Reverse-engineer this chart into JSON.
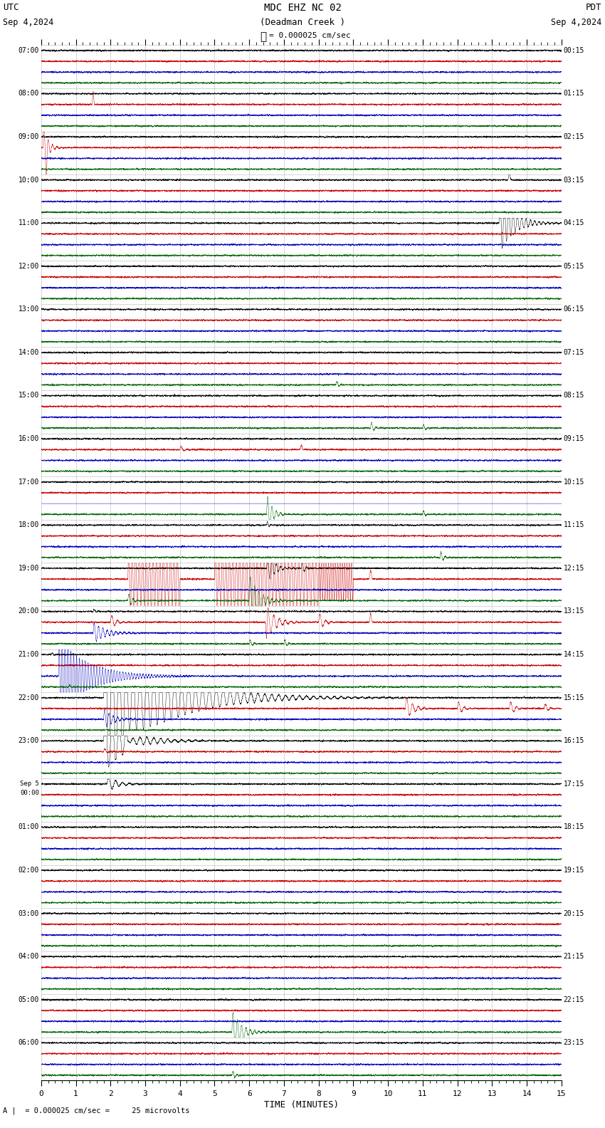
{
  "title_line1": "MDC EHZ NC 02",
  "title_line2": "(Deadman Creek )",
  "scale_label": "= 0.000025 cm/sec",
  "utc_label": "UTC",
  "pdt_label": "PDT",
  "date_left": "Sep 4,2024",
  "date_right": "Sep 4,2024",
  "xlabel": "TIME (MINUTES)",
  "footer_label": "= 0.000025 cm/sec =     25 microvolts",
  "bg_color": "#ffffff",
  "trace_colors": [
    "#000000",
    "#cc0000",
    "#0000bb",
    "#006600"
  ],
  "grid_color": "#888888",
  "x_min": 0,
  "x_max": 15,
  "num_rows": 24,
  "traces_per_row": 4,
  "utc_times": [
    "07:00",
    "08:00",
    "09:00",
    "10:00",
    "11:00",
    "12:00",
    "13:00",
    "14:00",
    "15:00",
    "16:00",
    "17:00",
    "18:00",
    "19:00",
    "20:00",
    "21:00",
    "22:00",
    "23:00",
    "Sep 5\n00:00",
    "01:00",
    "02:00",
    "03:00",
    "04:00",
    "05:00",
    "06:00"
  ],
  "pdt_times": [
    "00:15",
    "01:15",
    "02:15",
    "03:15",
    "04:15",
    "05:15",
    "06:15",
    "07:15",
    "08:15",
    "09:15",
    "10:15",
    "11:15",
    "12:15",
    "13:15",
    "14:15",
    "15:15",
    "16:15",
    "17:15",
    "18:15",
    "19:15",
    "20:15",
    "21:15",
    "22:15",
    "23:15"
  ]
}
